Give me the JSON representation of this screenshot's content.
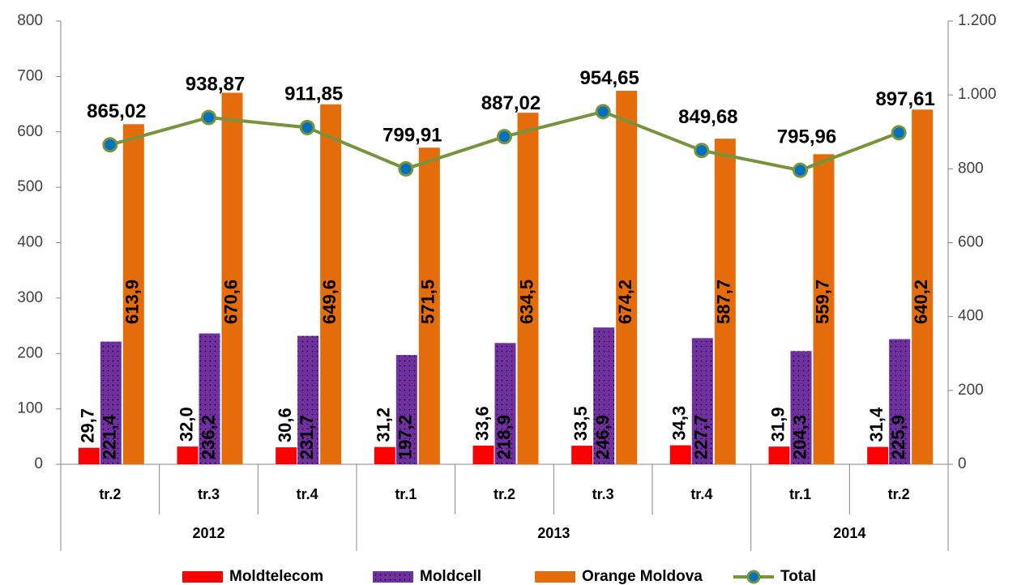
{
  "chart_data": {
    "type": "bar",
    "categories": [
      "tr.2",
      "tr.3",
      "tr.4",
      "tr.1",
      "tr.2",
      "tr.3",
      "tr.4",
      "tr.1",
      "tr.2"
    ],
    "groups": [
      {
        "label": "2012",
        "count": 3
      },
      {
        "label": "2013",
        "count": 4
      },
      {
        "label": "2014",
        "count": 2
      }
    ],
    "series": [
      {
        "name": "Moldtelecom",
        "color": "#ff0000",
        "values": [
          29.7,
          32.0,
          30.6,
          31.2,
          33.6,
          33.5,
          34.3,
          31.9,
          31.4
        ],
        "value_labels": [
          "29,7",
          "32,0",
          "30,6",
          "31,2",
          "33,6",
          "33,5",
          "34,3",
          "31,9",
          "31,4"
        ]
      },
      {
        "name": "Moldcell",
        "color": "#7030a0",
        "pattern": "dots",
        "values": [
          221.4,
          236.2,
          231.7,
          197.2,
          218.9,
          246.9,
          227.7,
          204.3,
          225.9
        ],
        "value_labels": [
          "221,4",
          "236,2",
          "231,7",
          "197,2",
          "218,9",
          "246,9",
          "227,7",
          "204,3",
          "225,9"
        ]
      },
      {
        "name": "Orange Moldova",
        "color": "#e46c0a",
        "values": [
          613.9,
          670.6,
          649.6,
          571.5,
          634.5,
          674.2,
          587.7,
          559.7,
          640.2
        ],
        "value_labels": [
          "613,9",
          "670,6",
          "649,6",
          "571,5",
          "634,5",
          "674,2",
          "587,7",
          "559,7",
          "640,2"
        ]
      },
      {
        "name": "Total",
        "type": "line",
        "axis": "y2",
        "color": "#77933c",
        "marker_color": "#0070c0",
        "values": [
          865.02,
          938.87,
          911.85,
          799.91,
          887.02,
          954.65,
          849.68,
          795.96,
          897.61
        ],
        "value_labels": [
          "865,02",
          "938,87",
          "911,85",
          "799,91",
          "887,02",
          "954,65",
          "849,68",
          "795,96",
          "897,61"
        ]
      }
    ],
    "ylim": [
      0,
      800
    ],
    "yticks": [
      0,
      100,
      200,
      300,
      400,
      500,
      600,
      700,
      800
    ],
    "y2lim": [
      0,
      1200
    ],
    "y2ticks": [
      0,
      200,
      400,
      600,
      800,
      {
        "value": 1000,
        "label": "1.000"
      },
      {
        "value": 1200,
        "label": "1.200"
      }
    ],
    "legend": "bottom"
  }
}
